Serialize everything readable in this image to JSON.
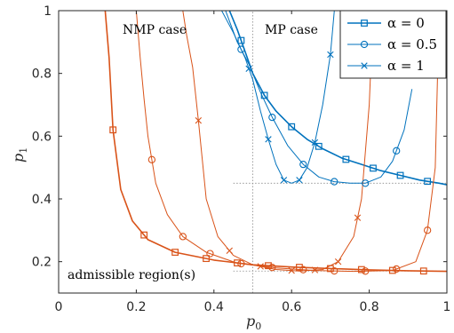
{
  "chart_data": {
    "type": "line",
    "xlabel": "p",
    "xlabel_sub": "0",
    "ylabel": "p",
    "ylabel_sub": "1",
    "xlim": [
      0,
      1
    ],
    "ylim": [
      0.1,
      1.0
    ],
    "xticks": [
      "0",
      "0.2",
      "0.4",
      "0.6",
      "0.8",
      "1"
    ],
    "yticks": [
      "0.2",
      "0.4",
      "0.6",
      "0.8",
      "1"
    ],
    "xtick_values": [
      0,
      0.2,
      0.4,
      0.6,
      0.8,
      1.0
    ],
    "ytick_values": [
      0.2,
      0.4,
      0.6,
      0.8,
      1.0
    ],
    "grid": false,
    "legend_placement": "top-right",
    "annotations": {
      "nmp": "NMP case",
      "mp": "MP case",
      "admissible": "admissible region(s)"
    },
    "colors": {
      "mp": "#0072BD",
      "nmp": "#D95319"
    },
    "legend": [
      {
        "label": "α = 0",
        "marker": "square"
      },
      {
        "label": "α = 0.5",
        "marker": "circle"
      },
      {
        "label": "α = 1",
        "marker": "x"
      }
    ],
    "reference_lines": [
      {
        "x": 0.5,
        "y_from": 0.1,
        "y_to": 1.0
      },
      {
        "y": 0.17,
        "x_from": 0.45,
        "x_to": 1.0
      },
      {
        "y": 0.45,
        "x_from": 0.45,
        "x_to": 1.0
      }
    ],
    "series": [
      {
        "group": "mp",
        "marker": "square",
        "x": [
          0.44,
          0.46,
          0.48,
          0.5,
          0.53,
          0.56,
          0.6,
          0.64,
          0.68,
          0.73,
          0.78,
          0.83,
          0.88,
          0.93,
          0.98,
          1.0
        ],
        "y": [
          1.0,
          0.94,
          0.87,
          0.8,
          0.73,
          0.68,
          0.63,
          0.59,
          0.56,
          0.53,
          0.51,
          0.49,
          0.475,
          0.46,
          0.45,
          0.445
        ],
        "marker_x": [
          0.47,
          0.53,
          0.6,
          0.67,
          0.74,
          0.81,
          0.88,
          0.95
        ]
      },
      {
        "group": "mp",
        "marker": "circle",
        "x": [
          0.43,
          0.46,
          0.49,
          0.52,
          0.55,
          0.59,
          0.63,
          0.67,
          0.71,
          0.75,
          0.79,
          0.83,
          0.86,
          0.89,
          0.91
        ],
        "y": [
          1.0,
          0.9,
          0.83,
          0.74,
          0.66,
          0.57,
          0.51,
          0.47,
          0.455,
          0.45,
          0.45,
          0.47,
          0.52,
          0.62,
          0.75
        ],
        "marker_x": [
          0.47,
          0.55,
          0.63,
          0.71,
          0.79,
          0.87
        ]
      },
      {
        "group": "mp",
        "marker": "x",
        "x": [
          0.42,
          0.45,
          0.48,
          0.5,
          0.52,
          0.54,
          0.56,
          0.58,
          0.6,
          0.62,
          0.64,
          0.66,
          0.68,
          0.7,
          0.71
        ],
        "y": [
          1.0,
          0.93,
          0.85,
          0.78,
          0.68,
          0.59,
          0.51,
          0.46,
          0.45,
          0.46,
          0.5,
          0.58,
          0.7,
          0.86,
          1.0
        ],
        "marker_x": [
          0.49,
          0.54,
          0.58,
          0.62,
          0.66,
          0.7
        ]
      },
      {
        "group": "nmp",
        "marker": "square",
        "x": [
          0.12,
          0.13,
          0.14,
          0.16,
          0.19,
          0.23,
          0.3,
          0.4,
          0.5,
          0.6,
          0.7,
          0.8,
          0.9,
          1.0
        ],
        "y": [
          1.0,
          0.85,
          0.62,
          0.43,
          0.33,
          0.27,
          0.23,
          0.205,
          0.19,
          0.183,
          0.178,
          0.174,
          0.171,
          0.169
        ],
        "marker_x": [
          0.14,
          0.22,
          0.3,
          0.38,
          0.46,
          0.54,
          0.62,
          0.7,
          0.78,
          0.86,
          0.94
        ]
      },
      {
        "group": "nmp",
        "marker": "circle",
        "x": [
          0.2,
          0.21,
          0.22,
          0.23,
          0.25,
          0.28,
          0.32,
          0.38,
          0.46,
          0.56,
          0.66,
          0.76,
          0.86,
          0.92,
          0.95,
          0.97,
          0.98
        ],
        "y": [
          1.0,
          0.85,
          0.72,
          0.6,
          0.45,
          0.35,
          0.28,
          0.23,
          0.195,
          0.18,
          0.172,
          0.169,
          0.172,
          0.2,
          0.3,
          0.5,
          1.0
        ],
        "marker_x": [
          0.24,
          0.32,
          0.39,
          0.47,
          0.55,
          0.63,
          0.71,
          0.79,
          0.87,
          0.95
        ]
      },
      {
        "group": "nmp",
        "marker": "x",
        "x": [
          0.32,
          0.33,
          0.345,
          0.36,
          0.38,
          0.41,
          0.45,
          0.5,
          0.56,
          0.62,
          0.68,
          0.72,
          0.76,
          0.78,
          0.8,
          0.81
        ],
        "y": [
          1.0,
          0.92,
          0.82,
          0.65,
          0.4,
          0.28,
          0.22,
          0.19,
          0.175,
          0.17,
          0.175,
          0.2,
          0.28,
          0.4,
          0.7,
          1.0
        ],
        "marker_x": [
          0.36,
          0.44,
          0.52,
          0.6,
          0.66,
          0.72,
          0.77
        ]
      }
    ]
  }
}
